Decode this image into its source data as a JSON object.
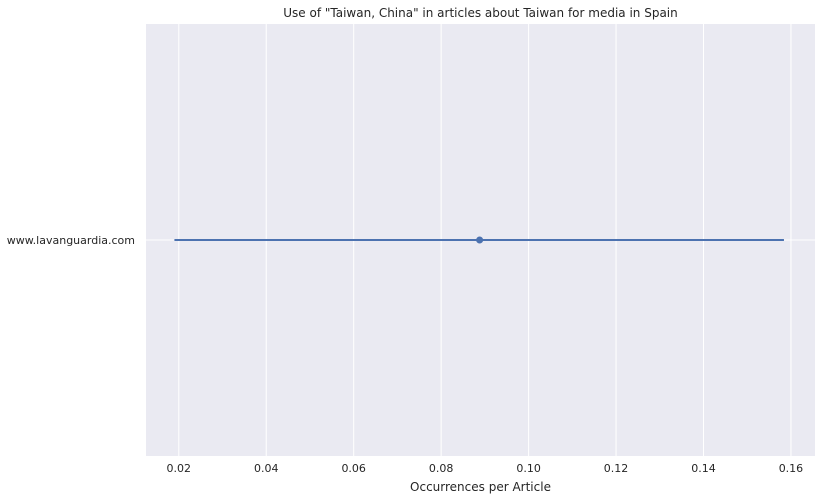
{
  "chart_data": {
    "type": "scatter",
    "title": "Use of \"Taiwan, China\" in articles about Taiwan for media in Spain",
    "xlabel": "Occurrences per Article",
    "ylabel": "",
    "xlim": [
      0.0125,
      0.1655
    ],
    "xticks": [
      0.02,
      0.04,
      0.06,
      0.08,
      0.1,
      0.12,
      0.14,
      0.16
    ],
    "xtick_labels": [
      "0.02",
      "0.04",
      "0.06",
      "0.08",
      "0.10",
      "0.12",
      "0.14",
      "0.16"
    ],
    "categories": [
      "www.lavanguardia.com"
    ],
    "series": [
      {
        "values": [
          0.0888
        ],
        "ci_low": [
          0.019
        ],
        "ci_high": [
          0.1584
        ]
      }
    ],
    "grid": true,
    "legend": "none",
    "colors": {
      "background": "#eaeaf2",
      "grid": "#ffffff",
      "series": "#4c72b0"
    }
  }
}
